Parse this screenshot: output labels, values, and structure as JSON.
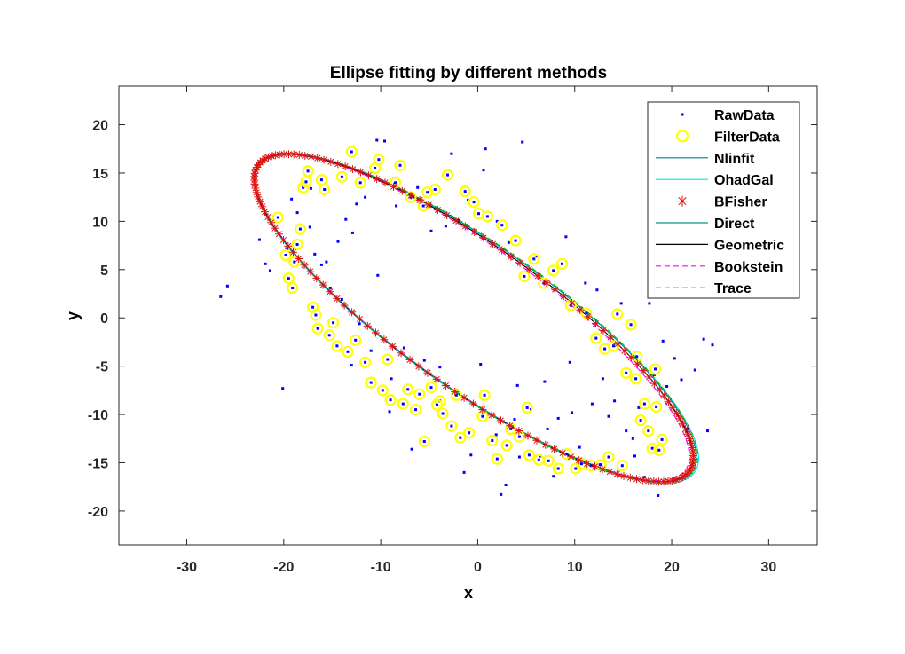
{
  "chart_data": {
    "type": "scatter",
    "title": "Ellipse fitting by different methods",
    "xlabel": "x",
    "ylabel": "y",
    "xlim": [
      -37,
      35
    ],
    "ylim": [
      -23.5,
      24
    ],
    "xticks": [
      -30,
      -20,
      -10,
      0,
      10,
      20,
      30
    ],
    "yticks": [
      -20,
      -15,
      -10,
      -5,
      0,
      5,
      10,
      15,
      20
    ],
    "grid": false,
    "legend_position": "top-right",
    "ellipse_fit": {
      "center": [
        -0.4,
        0.0
      ],
      "semi_axes": [
        27.3,
        7.4
      ],
      "rotation_deg": -35.5
    },
    "series": [
      {
        "name": "RawData",
        "marker": "dot",
        "color": "#0000ff",
        "points": [
          [
            -26.5,
            2.2
          ],
          [
            -25.8,
            3.3
          ],
          [
            -22.5,
            8.1
          ],
          [
            -21.9,
            5.6
          ],
          [
            -21.4,
            4.9
          ],
          [
            -20.1,
            -7.3
          ],
          [
            -19.7,
            7.2
          ],
          [
            -19.2,
            12.3
          ],
          [
            -18.6,
            10.9
          ],
          [
            -17.3,
            9.4
          ],
          [
            -16.8,
            6.6
          ],
          [
            -16.1,
            5.5
          ],
          [
            -15.6,
            5.8
          ],
          [
            -15.2,
            3.1
          ],
          [
            -14.4,
            7.9
          ],
          [
            -14.0,
            1.9
          ],
          [
            -13.6,
            10.2
          ],
          [
            -12.9,
            8.8
          ],
          [
            -12.2,
            -0.6
          ],
          [
            -11.6,
            12.5
          ],
          [
            -11.0,
            -3.4
          ],
          [
            -10.4,
            18.4
          ],
          [
            -9.6,
            18.3
          ],
          [
            -9.1,
            -9.7
          ],
          [
            -8.4,
            11.6
          ],
          [
            -7.6,
            -3.1
          ],
          [
            -6.8,
            -13.6
          ],
          [
            -6.2,
            13.5
          ],
          [
            -5.5,
            -4.4
          ],
          [
            -4.8,
            9.0
          ],
          [
            -3.9,
            -5.1
          ],
          [
            -3.3,
            9.5
          ],
          [
            -2.7,
            17.0
          ],
          [
            -2.0,
            10.1
          ],
          [
            -1.4,
            -16.0
          ],
          [
            -0.7,
            -14.2
          ],
          [
            0.3,
            -4.8
          ],
          [
            0.6,
            15.3
          ],
          [
            0.8,
            17.5
          ],
          [
            1.9,
            -12.1
          ],
          [
            2.4,
            -18.3
          ],
          [
            2.9,
            -17.3
          ],
          [
            3.2,
            7.8
          ],
          [
            3.8,
            -10.5
          ],
          [
            4.3,
            -14.4
          ],
          [
            4.6,
            18.2
          ],
          [
            5.5,
            -9.5
          ],
          [
            6.1,
            6.4
          ],
          [
            6.5,
            -14.3
          ],
          [
            7.2,
            -11.5
          ],
          [
            7.8,
            -16.4
          ],
          [
            8.3,
            -10.4
          ],
          [
            9.1,
            8.4
          ],
          [
            9.7,
            -9.8
          ],
          [
            10.5,
            -13.4
          ],
          [
            11.1,
            3.6
          ],
          [
            11.8,
            -8.9
          ],
          [
            12.3,
            2.9
          ],
          [
            12.9,
            -6.3
          ],
          [
            13.5,
            -10.2
          ],
          [
            14.1,
            -8.6
          ],
          [
            14.8,
            1.5
          ],
          [
            15.3,
            -11.7
          ],
          [
            16.0,
            -12.5
          ],
          [
            16.6,
            -9.3
          ],
          [
            17.2,
            -16.5
          ],
          [
            17.7,
            1.5
          ],
          [
            18.2,
            -5.9
          ],
          [
            18.6,
            -18.4
          ],
          [
            19.1,
            -2.4
          ],
          [
            19.5,
            -7.1
          ],
          [
            20.3,
            -4.2
          ],
          [
            21.0,
            -6.4
          ],
          [
            21.6,
            -11.5
          ],
          [
            22.4,
            -5.4
          ],
          [
            23.3,
            -2.2
          ],
          [
            23.7,
            -11.7
          ],
          [
            24.2,
            -2.8
          ],
          [
            -17.2,
            13.4
          ],
          [
            -10.3,
            4.4
          ],
          [
            -12.5,
            11.8
          ],
          [
            -13.0,
            -4.9
          ],
          [
            -8.9,
            -6.3
          ],
          [
            6.9,
            -6.6
          ],
          [
            9.5,
            -4.6
          ],
          [
            16.2,
            -14.3
          ],
          [
            12.6,
            -15.2
          ],
          [
            2.0,
            10.0
          ],
          [
            4.1,
            -7.0
          ],
          [
            -1.0,
            12.2
          ]
        ]
      },
      {
        "name": "FilterData",
        "marker": "circle",
        "color": "#ffff00",
        "points": [
          [
            -20.6,
            10.4
          ],
          [
            -19.8,
            6.5
          ],
          [
            -19.5,
            4.1
          ],
          [
            -19.1,
            3.1
          ],
          [
            -18.9,
            5.8
          ],
          [
            -18.6,
            7.6
          ],
          [
            -18.3,
            9.2
          ],
          [
            -18.0,
            13.5
          ],
          [
            -17.7,
            14.1
          ],
          [
            -17.5,
            15.2
          ],
          [
            -17.0,
            1.1
          ],
          [
            -16.7,
            0.3
          ],
          [
            -16.5,
            -1.1
          ],
          [
            -16.1,
            14.3
          ],
          [
            -15.8,
            13.3
          ],
          [
            -15.3,
            -1.8
          ],
          [
            -14.9,
            -0.5
          ],
          [
            -14.5,
            -2.9
          ],
          [
            -14.0,
            14.6
          ],
          [
            -13.4,
            -3.5
          ],
          [
            -13.0,
            17.2
          ],
          [
            -12.6,
            -2.3
          ],
          [
            -12.1,
            14.0
          ],
          [
            -11.6,
            -4.6
          ],
          [
            -11.0,
            -6.7
          ],
          [
            -10.6,
            15.5
          ],
          [
            -10.2,
            16.4
          ],
          [
            -9.8,
            -7.5
          ],
          [
            -9.3,
            -4.3
          ],
          [
            -9.0,
            -8.5
          ],
          [
            -8.5,
            14.0
          ],
          [
            -8.0,
            15.8
          ],
          [
            -7.7,
            -8.9
          ],
          [
            -7.2,
            -7.4
          ],
          [
            -6.9,
            12.5
          ],
          [
            -6.4,
            -9.5
          ],
          [
            -6.0,
            -7.9
          ],
          [
            -5.6,
            11.6
          ],
          [
            -5.2,
            13.0
          ],
          [
            -4.8,
            -7.2
          ],
          [
            -4.4,
            13.3
          ],
          [
            -3.9,
            -8.6
          ],
          [
            -3.6,
            -9.9
          ],
          [
            -3.1,
            14.8
          ],
          [
            -2.7,
            -11.2
          ],
          [
            -2.2,
            -8.0
          ],
          [
            -1.8,
            -12.4
          ],
          [
            -1.3,
            13.1
          ],
          [
            -0.9,
            -11.9
          ],
          [
            -0.4,
            12.0
          ],
          [
            0.1,
            10.8
          ],
          [
            0.5,
            -10.2
          ],
          [
            1.0,
            10.5
          ],
          [
            1.5,
            -12.7
          ],
          [
            2.0,
            -14.6
          ],
          [
            2.5,
            9.6
          ],
          [
            3.0,
            -13.2
          ],
          [
            3.4,
            -11.5
          ],
          [
            3.9,
            8.0
          ],
          [
            4.3,
            -12.3
          ],
          [
            4.8,
            4.3
          ],
          [
            5.3,
            -14.2
          ],
          [
            5.8,
            6.1
          ],
          [
            6.3,
            -14.7
          ],
          [
            6.8,
            3.6
          ],
          [
            7.3,
            -14.8
          ],
          [
            7.8,
            4.9
          ],
          [
            8.3,
            -15.6
          ],
          [
            8.7,
            5.6
          ],
          [
            9.2,
            -14.1
          ],
          [
            9.6,
            1.3
          ],
          [
            10.1,
            -15.6
          ],
          [
            10.7,
            -15.1
          ],
          [
            11.2,
            0.5
          ],
          [
            11.7,
            -15.3
          ],
          [
            12.2,
            -2.1
          ],
          [
            12.7,
            -15.2
          ],
          [
            13.1,
            -3.2
          ],
          [
            13.5,
            -14.4
          ],
          [
            14.0,
            -2.9
          ],
          [
            14.4,
            0.4
          ],
          [
            14.9,
            -15.3
          ],
          [
            15.3,
            -5.7
          ],
          [
            15.8,
            -0.7
          ],
          [
            16.3,
            -6.3
          ],
          [
            16.8,
            -10.6
          ],
          [
            17.2,
            -8.9
          ],
          [
            17.6,
            -11.7
          ],
          [
            18.0,
            -13.5
          ],
          [
            18.4,
            -9.2
          ],
          [
            18.7,
            -13.7
          ],
          [
            19.0,
            -12.6
          ],
          [
            18.3,
            -5.3
          ],
          [
            16.4,
            -4.0
          ],
          [
            -5.5,
            -12.8
          ],
          [
            5.1,
            -9.3
          ],
          [
            -4.2,
            -9.0
          ],
          [
            0.7,
            -8.0
          ]
        ]
      },
      {
        "name": "Nlinfit",
        "line": "solid",
        "color": "#008080"
      },
      {
        "name": "OhadGal",
        "line": "solid",
        "color": "#00e5ee"
      },
      {
        "name": "BFisher",
        "marker": "asterisk",
        "color": "#dd1111"
      },
      {
        "name": "Direct",
        "line": "solid",
        "color": "#009999"
      },
      {
        "name": "Geometric",
        "line": "solid",
        "color": "#000000"
      },
      {
        "name": "Bookstein",
        "line": "dashed",
        "color": "#ff00ff"
      },
      {
        "name": "Trace",
        "line": "dashed",
        "color": "#00cc00"
      }
    ]
  }
}
